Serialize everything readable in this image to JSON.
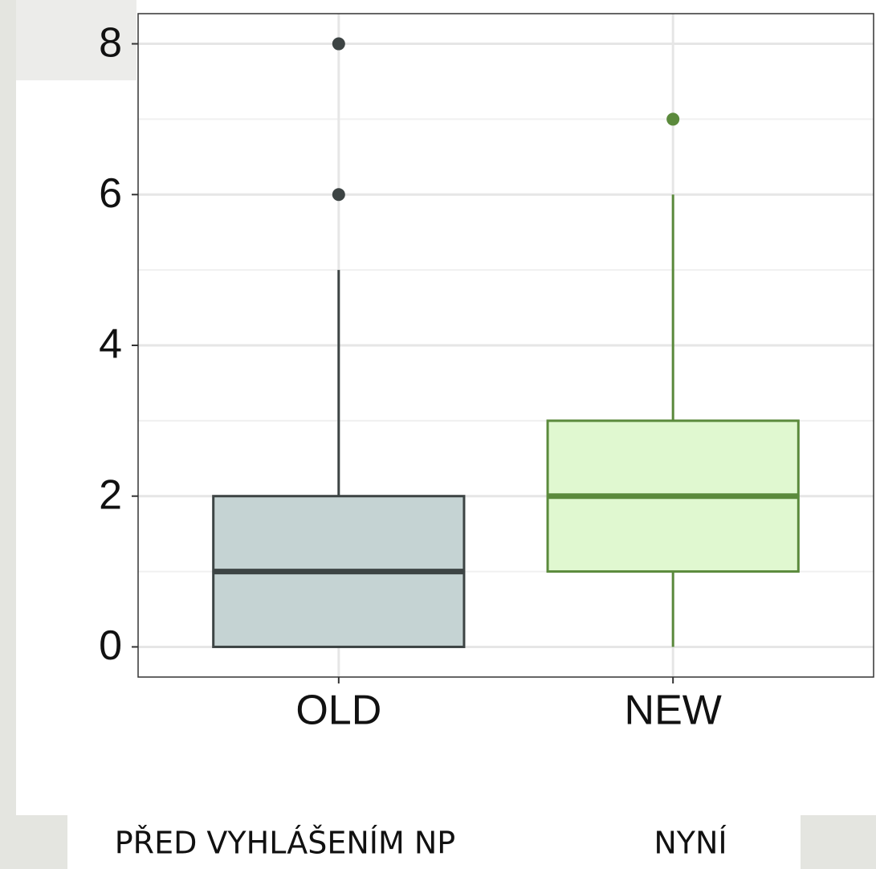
{
  "chart_data": {
    "type": "box",
    "categories": [
      "OLD",
      "NEW"
    ],
    "min": [
      0,
      0
    ],
    "q1": [
      0,
      1
    ],
    "median": [
      1,
      2
    ],
    "q3": [
      2,
      3
    ],
    "max": [
      5,
      6
    ],
    "outliers": [
      [
        8,
        6
      ],
      [
        7
      ]
    ],
    "fill_colors": [
      "#c5d3d3",
      "#e0f8d0"
    ],
    "line_colors": [
      "#3d4444",
      "#5b8a3c"
    ],
    "ylim": [
      -0.4,
      8.4
    ],
    "yticks": [
      0,
      2,
      4,
      6,
      8
    ],
    "minor_yticks": [
      1,
      3,
      5,
      7
    ],
    "grid": true
  },
  "captions": [
    "PŘED VYHLÁŠENÍM NP",
    "NYNÍ"
  ]
}
